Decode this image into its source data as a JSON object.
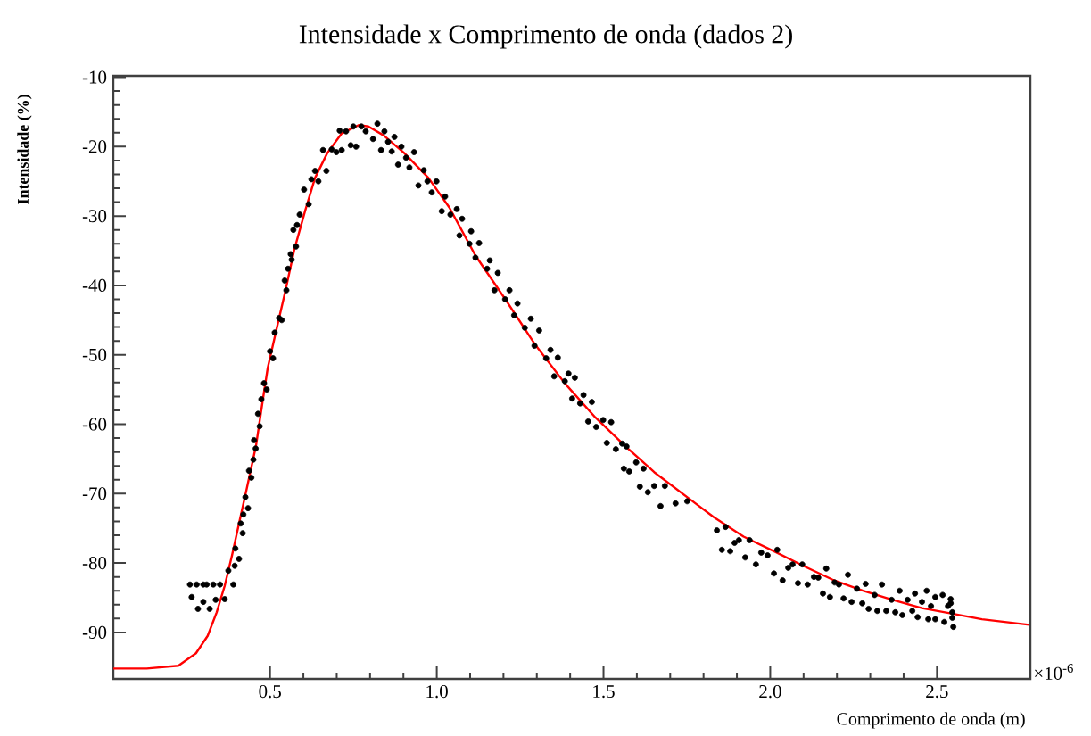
{
  "chart_data": {
    "type": "scatter",
    "title": "Intensidade x Comprimento de onda (dados 2)",
    "xlabel": "Comprimento de onda (m)",
    "ylabel": "Intensidade (%)",
    "annotations": [
      "×10$^{-6}$"
    ],
    "xlim": [
      0.03,
      2.78
    ],
    "ylim": [
      -96.7,
      -9.8
    ],
    "xticks": [
      {
        "value": 0.5,
        "label": "0.5"
      },
      {
        "value": 1.0,
        "label": "1.0"
      },
      {
        "value": 1.5,
        "label": "1.5"
      },
      {
        "value": 2.0,
        "label": "2.0"
      },
      {
        "value": 2.5,
        "label": "2.5"
      }
    ],
    "yticks": [
      -90,
      -80,
      -70,
      -60,
      -50,
      -40,
      -30,
      -20,
      -10
    ],
    "grid": false,
    "legend": false,
    "series": [
      {
        "color": "#000000",
        "marker": "circle",
        "x": [
          0.26,
          0.28,
          0.3,
          0.31,
          0.33,
          0.35,
          0.39,
          0.265,
          0.284,
          0.3,
          0.319,
          0.337,
          0.364,
          0.375,
          0.394,
          0.407,
          0.396,
          0.418,
          0.412,
          0.42,
          0.434,
          0.426,
          0.444,
          0.437,
          0.45,
          0.457,
          0.452,
          0.469,
          0.464,
          0.474,
          0.482,
          0.49,
          0.5,
          0.509,
          0.514,
          0.527,
          0.535,
          0.549,
          0.544,
          0.554,
          0.565,
          0.562,
          0.578,
          0.57,
          0.581,
          0.589,
          0.616,
          0.602,
          0.624,
          0.645,
          0.635,
          0.669,
          0.659,
          0.685,
          0.699,
          0.715,
          0.709,
          0.728,
          0.742,
          0.758,
          0.75,
          0.774,
          0.787,
          0.809,
          0.822,
          0.833,
          0.843,
          0.854,
          0.865,
          0.873,
          0.884,
          0.894,
          0.908,
          0.918,
          0.932,
          0.945,
          0.961,
          0.972,
          0.985,
          0.999,
          1.015,
          1.025,
          1.041,
          1.06,
          1.068,
          1.076,
          1.098,
          1.103,
          1.116,
          1.127,
          1.159,
          1.151,
          1.183,
          1.173,
          1.218,
          1.205,
          1.242,
          1.232,
          1.282,
          1.264,
          1.307,
          1.293,
          1.341,
          1.328,
          1.363,
          1.352,
          1.395,
          1.414,
          1.384,
          1.44,
          1.406,
          1.465,
          1.43,
          1.499,
          1.523,
          1.454,
          1.478,
          1.556,
          1.569,
          1.51,
          1.537,
          1.598,
          1.62,
          1.561,
          1.577,
          1.652,
          1.684,
          1.609,
          1.633,
          1.751,
          1.716,
          1.671,
          1.866,
          1.84,
          1.855,
          1.88,
          1.893,
          1.906,
          1.938,
          1.925,
          1.957,
          1.973,
          1.992,
          2.021,
          2.011,
          2.037,
          2.054,
          2.067,
          2.096,
          2.083,
          2.112,
          2.131,
          2.144,
          2.168,
          2.158,
          2.179,
          2.193,
          2.206,
          2.233,
          2.22,
          2.244,
          2.26,
          2.286,
          2.276,
          2.295,
          2.313,
          2.321,
          2.335,
          2.348,
          2.364,
          2.375,
          2.388,
          2.396,
          2.412,
          2.426,
          2.434,
          2.442,
          2.455,
          2.469,
          2.474,
          2.482,
          2.495,
          2.495,
          2.517,
          2.522,
          2.533,
          2.541,
          2.546,
          2.549,
          2.546,
          2.541
        ],
        "values": [
          -83.1,
          -83.1,
          -83.1,
          -83.1,
          -83.1,
          -83.1,
          -83.1,
          -84.9,
          -86.6,
          -85.6,
          -86.6,
          -85.3,
          -85.2,
          -81.1,
          -80.4,
          -79.4,
          -77.9,
          -75.7,
          -74.3,
          -73.0,
          -72.1,
          -70.5,
          -67.7,
          -66.7,
          -65.1,
          -63.5,
          -62.3,
          -60.3,
          -58.5,
          -56.4,
          -54.1,
          -55.0,
          -49.5,
          -50.5,
          -46.8,
          -44.7,
          -45.0,
          -40.7,
          -39.3,
          -37.6,
          -36.3,
          -35.5,
          -34.4,
          -32.0,
          -31.3,
          -29.8,
          -28.3,
          -26.2,
          -24.7,
          -25.0,
          -23.5,
          -23.5,
          -20.5,
          -20.4,
          -20.8,
          -20.5,
          -17.7,
          -17.8,
          -19.8,
          -20.0,
          -17.1,
          -17.1,
          -17.8,
          -18.9,
          -16.7,
          -20.5,
          -17.8,
          -19.3,
          -20.7,
          -18.6,
          -22.6,
          -20.0,
          -21.6,
          -23.0,
          -20.8,
          -25.6,
          -23.4,
          -25.0,
          -26.6,
          -25.0,
          -29.3,
          -27.2,
          -29.8,
          -29.0,
          -32.8,
          -30.4,
          -34.0,
          -32.2,
          -36.0,
          -33.9,
          -36.4,
          -37.6,
          -38.2,
          -40.7,
          -40.7,
          -42.0,
          -42.6,
          -44.3,
          -44.8,
          -46.1,
          -46.5,
          -48.7,
          -49.3,
          -50.5,
          -50.4,
          -53.1,
          -52.7,
          -53.3,
          -53.8,
          -55.8,
          -56.3,
          -56.8,
          -57.0,
          -59.4,
          -59.7,
          -59.6,
          -60.4,
          -62.8,
          -63.2,
          -62.7,
          -63.6,
          -65.5,
          -66.4,
          -66.4,
          -66.8,
          -68.9,
          -68.9,
          -69.0,
          -69.8,
          -71.1,
          -71.4,
          -71.8,
          -74.8,
          -75.3,
          -78.1,
          -78.3,
          -77.1,
          -76.7,
          -76.7,
          -79.2,
          -80.2,
          -78.5,
          -78.9,
          -78.1,
          -81.5,
          -82.5,
          -80.7,
          -80.2,
          -80.2,
          -82.9,
          -83.1,
          -82.0,
          -82.1,
          -80.8,
          -84.4,
          -84.9,
          -82.8,
          -83.1,
          -81.7,
          -85.1,
          -85.6,
          -83.7,
          -83.0,
          -85.8,
          -86.6,
          -84.6,
          -86.9,
          -83.1,
          -86.9,
          -85.3,
          -87.1,
          -84.0,
          -87.5,
          -85.3,
          -86.9,
          -84.4,
          -87.8,
          -85.6,
          -84.0,
          -88.1,
          -86.2,
          -84.9,
          -88.1,
          -84.6,
          -88.5,
          -86.2,
          -85.2,
          -87.1,
          -89.2,
          -87.9,
          -85.8
        ]
      },
      {
        "type": "line",
        "color": "#ff0000",
        "marker": "none",
        "line_style": "solid",
        "x": [
          0.03,
          0.13,
          0.225,
          0.278,
          0.313,
          0.34,
          0.364,
          0.386,
          0.407,
          0.431,
          0.458,
          0.479,
          0.493,
          0.519,
          0.546,
          0.573,
          0.605,
          0.635,
          0.672,
          0.715,
          0.766,
          0.795,
          0.841,
          0.902,
          0.975,
          1.038,
          1.116,
          1.207,
          1.296,
          1.384,
          1.475,
          1.564,
          1.652,
          1.77,
          1.831,
          1.92,
          2.011,
          2.099,
          2.187,
          2.278,
          2.367,
          2.455,
          2.546,
          2.635,
          2.777
        ],
        "values": [
          -95.2,
          -95.2,
          -94.8,
          -93.0,
          -90.5,
          -87.1,
          -83.3,
          -78.9,
          -74.3,
          -69.1,
          -63.1,
          -56.3,
          -51.9,
          -46.4,
          -40.8,
          -34.8,
          -29.3,
          -24.5,
          -20.9,
          -18.1,
          -16.9,
          -17.1,
          -18.4,
          -20.9,
          -24.5,
          -28.8,
          -35.7,
          -42.1,
          -48.6,
          -54.1,
          -59.0,
          -63.1,
          -66.9,
          -71.2,
          -73.4,
          -76.2,
          -78.3,
          -80.4,
          -82.4,
          -84.0,
          -85.3,
          -86.5,
          -87.3,
          -88.1,
          -88.9
        ]
      }
    ]
  }
}
